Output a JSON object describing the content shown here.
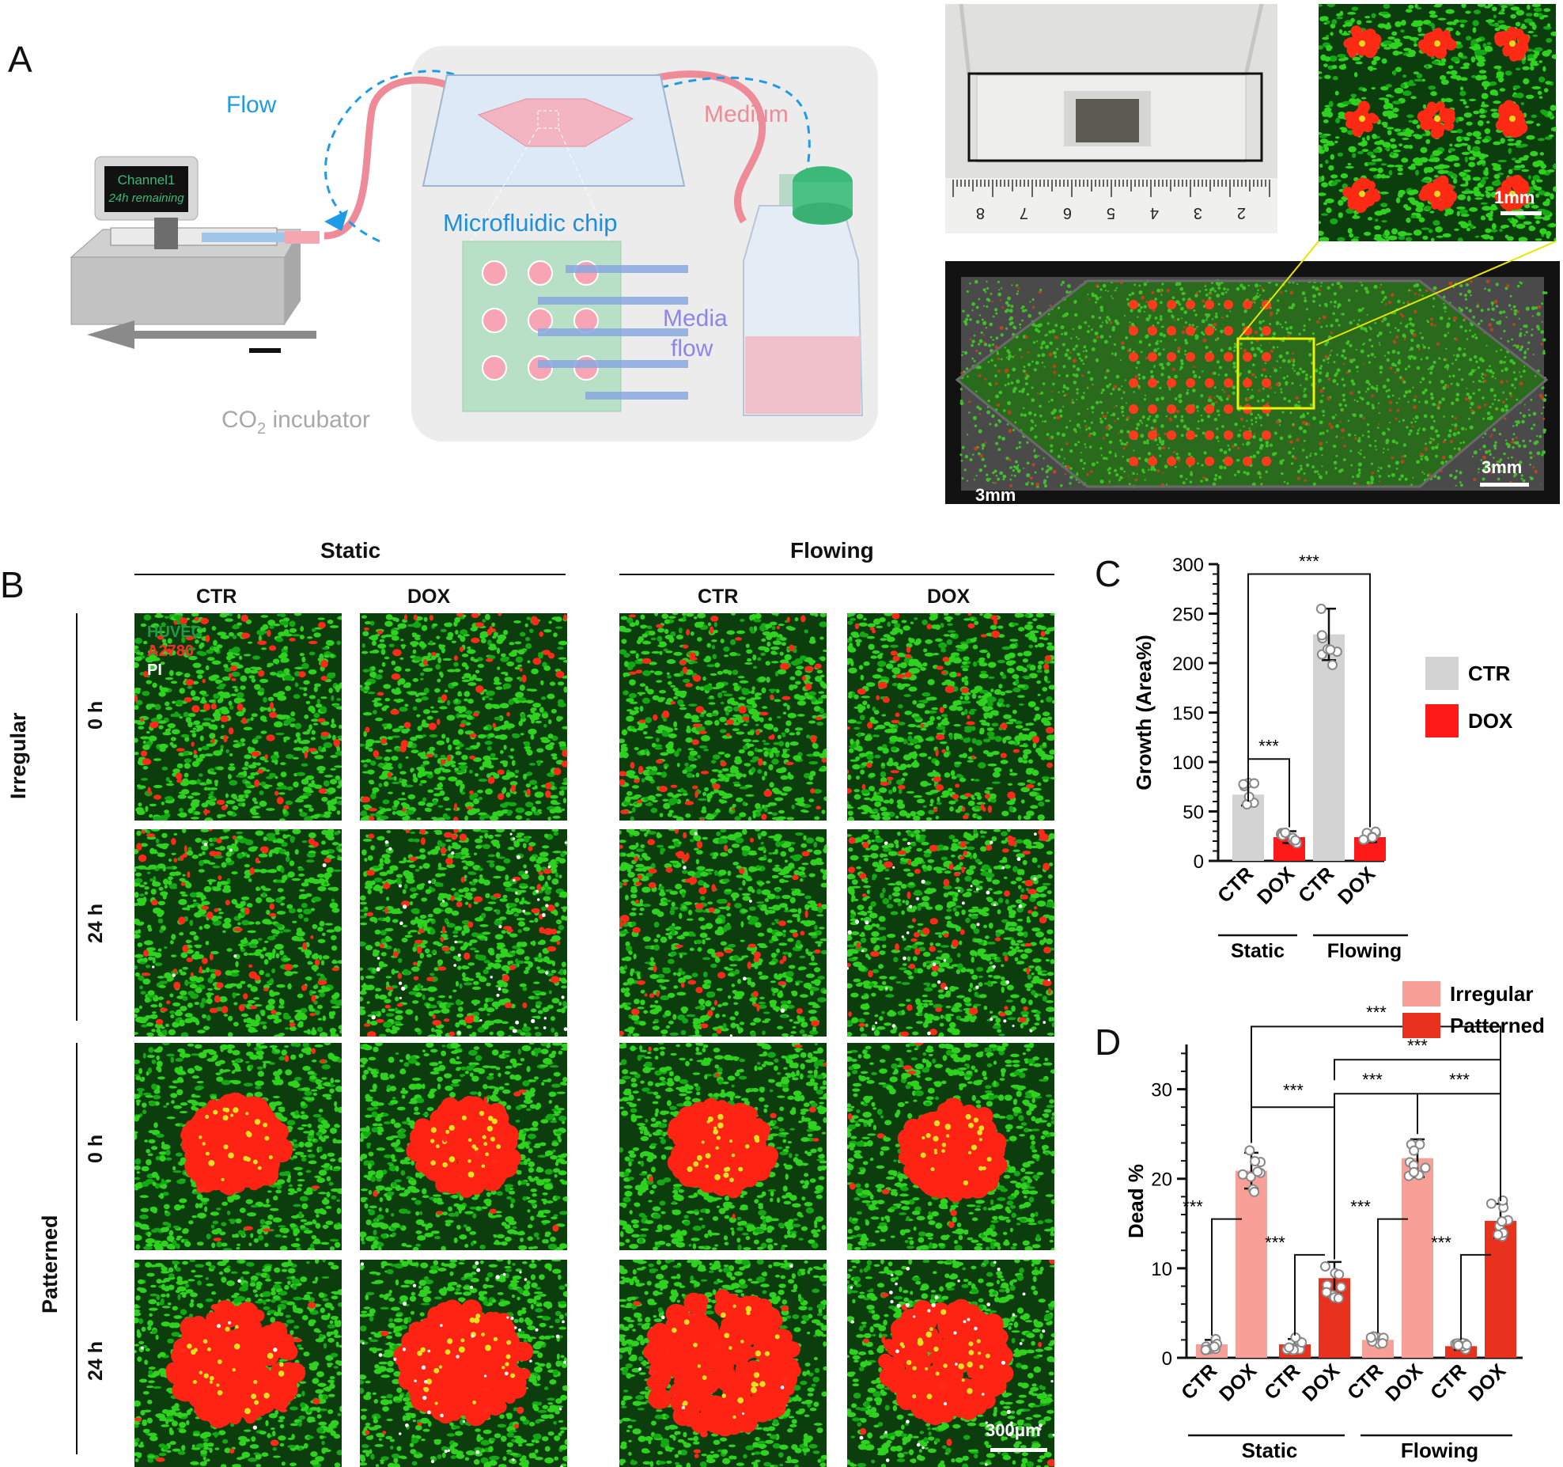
{
  "panels": {
    "a": "A",
    "b": "B",
    "c": "C",
    "d": "D"
  },
  "schematic": {
    "pump_screen_line1": "Channel1",
    "pump_screen_line2": "24h remaining",
    "flow_label": "Flow",
    "medium_label": "Medium",
    "chip_label": "Microfluidic chip",
    "media_flow_label_1": "Media",
    "media_flow_label_2": "flow",
    "incubator_label": "CO",
    "incubator_sub": "2",
    "incubator_suffix": " incubator"
  },
  "photo": {
    "ruler_numbers": [
      "8",
      "7",
      "6",
      "5",
      "4",
      "3",
      "2"
    ],
    "scale_1mm": "1mm",
    "scale_3mm_left": "3mm",
    "scale_3mm_right": "3mm"
  },
  "panel_b": {
    "group_static": "Static",
    "group_flowing": "Flowing",
    "col_labels": [
      "CTR",
      "DOX",
      "CTR",
      "DOX"
    ],
    "row_group_irregular": "Irregular",
    "row_group_patterned": "Patterned",
    "time_labels": [
      "0 h",
      "24 h",
      "0 h",
      "24 h"
    ],
    "legend_huvec": "HUVEC",
    "legend_a2780": "A2780",
    "legend_pi": "PI",
    "scale_bar": "300μm"
  },
  "colors": {
    "gray_bar": "#d3d3d3",
    "red_bar": "#ff1a1a",
    "pink_bar": "#f8a097",
    "patterned_red": "#e8321e",
    "flow_blue": "#1e9be8",
    "medium_pink": "#ef8b98",
    "chip_blue": "#1e8fe0",
    "media_purple": "#8c86e8"
  },
  "chart_data": [
    {
      "type": "bar",
      "panel": "C",
      "ylabel": "Growth (Area%)",
      "ylim": [
        0,
        300
      ],
      "yticks": [
        "0",
        "50",
        "100",
        "150",
        "200",
        "250",
        "300"
      ],
      "categories": [
        "CTR",
        "DOX",
        "CTR",
        "DOX"
      ],
      "groups": [
        "Static",
        "Flowing"
      ],
      "legend": [
        "CTR",
        "DOX"
      ],
      "values": [
        67,
        24,
        229,
        24
      ],
      "errors": [
        11,
        6,
        26,
        5
      ],
      "significance": [
        "***",
        "***"
      ]
    },
    {
      "type": "bar",
      "panel": "D",
      "ylabel": "Dead %",
      "ylim": [
        0,
        35
      ],
      "yticks": [
        "0",
        "10",
        "20",
        "30"
      ],
      "categories": [
        "CTR",
        "DOX",
        "CTR",
        "DOX",
        "CTR",
        "DOX",
        "CTR",
        "DOX"
      ],
      "groups": [
        "Static",
        "Flowing"
      ],
      "legend": [
        "Irregular",
        "Patterned"
      ],
      "series_of_bar": [
        "Irregular",
        "Irregular",
        "Patterned",
        "Patterned",
        "Irregular",
        "Irregular",
        "Patterned",
        "Patterned"
      ],
      "values": [
        1.5,
        20.9,
        1.5,
        8.9,
        2.0,
        22.3,
        1.3,
        15.3
      ],
      "errors": [
        0.5,
        2.0,
        0.6,
        1.8,
        0.4,
        2.1,
        0.4,
        1.9
      ],
      "significance": [
        "***",
        "***",
        "***",
        "***",
        "***",
        "***",
        "***",
        "***",
        "***"
      ]
    }
  ]
}
